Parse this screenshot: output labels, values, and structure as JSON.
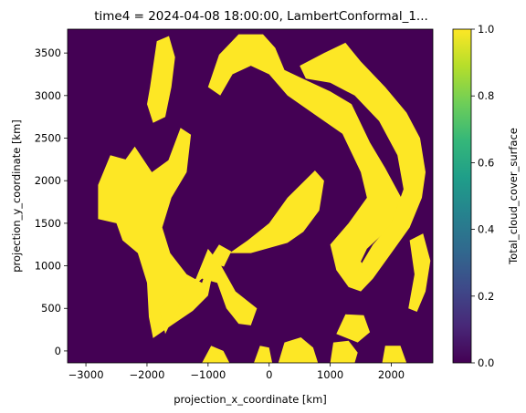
{
  "chart_data": {
    "type": "heatmap",
    "title": "time4 = 2024-04-08 18:00:00, LambertConformal_1...",
    "xlabel": "projection_x_coordinate [km]",
    "ylabel": "projection_y_coordinate [km]",
    "xlim": [
      -3300,
      2680
    ],
    "ylim": [
      -140,
      3780
    ],
    "xticks": [
      -3000,
      -2000,
      -1000,
      0,
      1000,
      2000
    ],
    "xtick_labels": [
      "−3000",
      "−2000",
      "−1000",
      "0",
      "1000",
      "2000"
    ],
    "yticks": [
      0,
      500,
      1000,
      1500,
      2000,
      2500,
      3000,
      3500
    ],
    "ytick_labels": [
      "0",
      "500",
      "1000",
      "1500",
      "2000",
      "2500",
      "3000",
      "3500"
    ],
    "colorbar": {
      "label": "Total_cloud_cover_surface",
      "range": [
        0.0,
        1.0
      ],
      "ticks": [
        0.0,
        0.2,
        0.4,
        0.6,
        0.8,
        1.0
      ],
      "tick_labels": [
        "0.0",
        "0.2",
        "0.4",
        "0.6",
        "0.8",
        "1.0"
      ],
      "colormap": "viridis",
      "stops": [
        "#440154",
        "#482878",
        "#3e4989",
        "#31688e",
        "#26828e",
        "#1f9e89",
        "#35b779",
        "#6ece58",
        "#b5de2b",
        "#fde725"
      ]
    },
    "background_value": 0.0,
    "colors": {
      "clear": "#440154",
      "cloud": "#fde725"
    },
    "regions": [
      {
        "name": "west-band",
        "value": 1.0,
        "points": [
          [
            -1920,
            2100
          ],
          [
            -1650,
            2240
          ],
          [
            -1450,
            2620
          ],
          [
            -1280,
            2540
          ],
          [
            -1350,
            2100
          ],
          [
            -1600,
            1800
          ],
          [
            -1750,
            1450
          ],
          [
            -1620,
            1150
          ],
          [
            -1350,
            900
          ],
          [
            -1100,
            800
          ],
          [
            -1000,
            1020
          ],
          [
            -900,
            1000
          ],
          [
            -1000,
            650
          ],
          [
            -1250,
            470
          ],
          [
            -1600,
            300
          ],
          [
            -1900,
            150
          ],
          [
            -1970,
            400
          ],
          [
            -2000,
            800
          ],
          [
            -2150,
            1150
          ],
          [
            -2400,
            1300
          ],
          [
            -2500,
            1500
          ],
          [
            -2800,
            1550
          ],
          [
            -2800,
            1950
          ],
          [
            -2600,
            2300
          ],
          [
            -2350,
            2250
          ],
          [
            -2200,
            2400
          ]
        ]
      },
      {
        "name": "south-arm",
        "value": 1.0,
        "points": [
          [
            -1700,
            200
          ],
          [
            -1400,
            650
          ],
          [
            -1100,
            850
          ],
          [
            -850,
            800
          ],
          [
            -700,
            500
          ],
          [
            -500,
            320
          ],
          [
            -300,
            300
          ],
          [
            -200,
            500
          ],
          [
            -550,
            700
          ],
          [
            -800,
            1020
          ],
          [
            -1000,
            1200
          ],
          [
            -1200,
            850
          ],
          [
            -1500,
            700
          ],
          [
            -1800,
            500
          ]
        ]
      },
      {
        "name": "north-blob",
        "value": 1.0,
        "points": [
          [
            -1950,
            3100
          ],
          [
            -1840,
            3640
          ],
          [
            -1640,
            3700
          ],
          [
            -1540,
            3450
          ],
          [
            -1600,
            3100
          ],
          [
            -1700,
            2750
          ],
          [
            -1900,
            2680
          ],
          [
            -2000,
            2900
          ]
        ]
      },
      {
        "name": "north-band",
        "value": 1.0,
        "points": [
          [
            -1000,
            3100
          ],
          [
            -820,
            3480
          ],
          [
            -500,
            3720
          ],
          [
            -100,
            3720
          ],
          [
            100,
            3560
          ],
          [
            250,
            3300
          ],
          [
            550,
            3200
          ],
          [
            1000,
            3050
          ],
          [
            1350,
            2900
          ],
          [
            1650,
            2450
          ],
          [
            1900,
            2150
          ],
          [
            2200,
            1750
          ],
          [
            2100,
            1500
          ],
          [
            1900,
            1400
          ],
          [
            1600,
            1200
          ],
          [
            1500,
            1050
          ],
          [
            1700,
            850
          ],
          [
            1500,
            700
          ],
          [
            1300,
            750
          ],
          [
            1100,
            950
          ],
          [
            1000,
            1250
          ],
          [
            1300,
            1500
          ],
          [
            1600,
            1800
          ],
          [
            1500,
            2100
          ],
          [
            1200,
            2550
          ],
          [
            700,
            2800
          ],
          [
            300,
            3000
          ],
          [
            0,
            3250
          ],
          [
            -300,
            3350
          ],
          [
            -600,
            3250
          ],
          [
            -800,
            3000
          ]
        ]
      },
      {
        "name": "northeast-lobe",
        "value": 1.0,
        "points": [
          [
            500,
            3350
          ],
          [
            900,
            3500
          ],
          [
            1250,
            3620
          ],
          [
            1500,
            3400
          ],
          [
            1900,
            3100
          ],
          [
            2250,
            2800
          ],
          [
            2470,
            2500
          ],
          [
            2560,
            2100
          ],
          [
            2500,
            1800
          ],
          [
            2300,
            1450
          ],
          [
            2000,
            1150
          ],
          [
            1700,
            850
          ],
          [
            1450,
            950
          ],
          [
            1700,
            1250
          ],
          [
            2000,
            1500
          ],
          [
            2200,
            1900
          ],
          [
            2100,
            2300
          ],
          [
            1800,
            2700
          ],
          [
            1400,
            3000
          ],
          [
            1000,
            3150
          ],
          [
            600,
            3200
          ]
        ]
      },
      {
        "name": "east-edge",
        "value": 1.0,
        "points": [
          [
            2280,
            500
          ],
          [
            2380,
            900
          ],
          [
            2300,
            1300
          ],
          [
            2520,
            1380
          ],
          [
            2640,
            1060
          ],
          [
            2560,
            700
          ],
          [
            2420,
            460
          ]
        ]
      },
      {
        "name": "central-tongue",
        "value": 1.0,
        "points": [
          [
            -650,
            1150
          ],
          [
            -350,
            1300
          ],
          [
            0,
            1500
          ],
          [
            300,
            1800
          ],
          [
            750,
            2120
          ],
          [
            900,
            2000
          ],
          [
            820,
            1650
          ],
          [
            560,
            1400
          ],
          [
            300,
            1270
          ],
          [
            -300,
            1150
          ]
        ]
      },
      {
        "name": "cloud-bit-a",
        "value": 1.0,
        "points": [
          [
            -1000,
            1050
          ],
          [
            -820,
            1250
          ],
          [
            -620,
            1170
          ],
          [
            -740,
            990
          ]
        ]
      },
      {
        "name": "south-patch-1",
        "value": 1.0,
        "points": [
          [
            -1100,
            -140
          ],
          [
            -950,
            60
          ],
          [
            -750,
            0
          ],
          [
            -650,
            -140
          ]
        ]
      },
      {
        "name": "south-patch-2",
        "value": 1.0,
        "points": [
          [
            150,
            -140
          ],
          [
            250,
            100
          ],
          [
            520,
            160
          ],
          [
            720,
            40
          ],
          [
            800,
            -140
          ]
        ]
      },
      {
        "name": "south-patch-3",
        "value": 1.0,
        "points": [
          [
            1000,
            -140
          ],
          [
            1050,
            100
          ],
          [
            1300,
            120
          ],
          [
            1450,
            -20
          ],
          [
            1400,
            -140
          ]
        ]
      },
      {
        "name": "south-patch-4",
        "value": 1.0,
        "points": [
          [
            1100,
            200
          ],
          [
            1250,
            430
          ],
          [
            1550,
            420
          ],
          [
            1650,
            220
          ],
          [
            1450,
            100
          ]
        ]
      },
      {
        "name": "south-patch-5",
        "value": 1.0,
        "points": [
          [
            1850,
            -140
          ],
          [
            1900,
            60
          ],
          [
            2150,
            60
          ],
          [
            2250,
            -140
          ]
        ]
      },
      {
        "name": "south-patch-6",
        "value": 1.0,
        "points": [
          [
            -250,
            -140
          ],
          [
            -150,
            60
          ],
          [
            0,
            40
          ],
          [
            50,
            -140
          ]
        ]
      }
    ]
  }
}
